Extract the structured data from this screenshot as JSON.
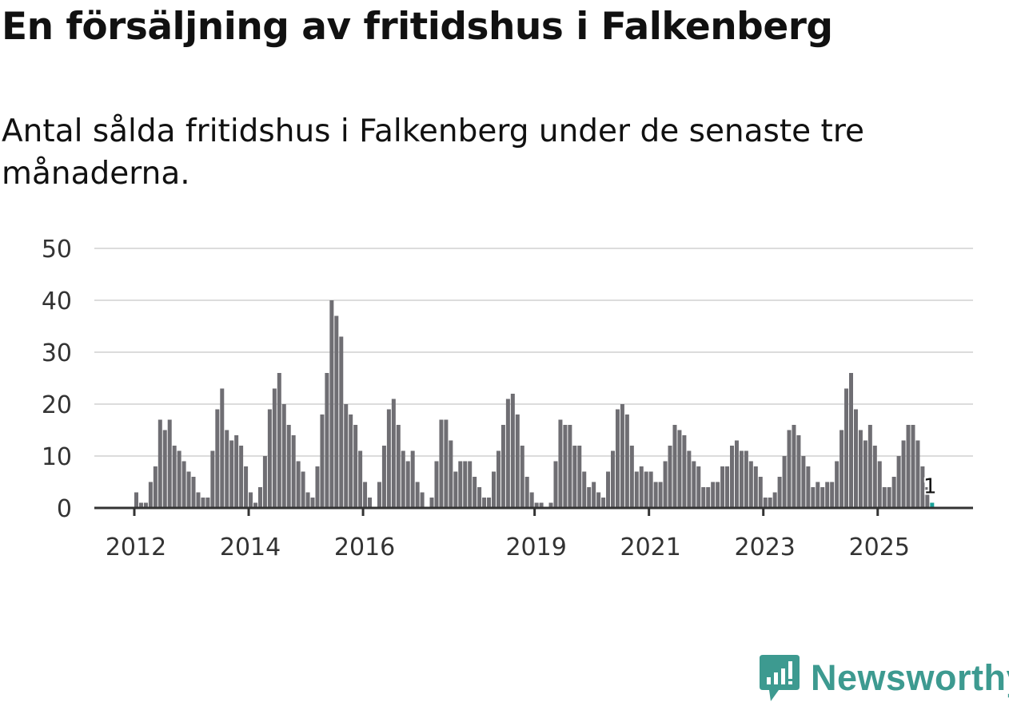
{
  "title": "En försäljning av fritidshus i Falkenberg",
  "subtitle": "Antal sålda fritidshus i Falkenberg under de senaste tre månaderna.",
  "brand": {
    "name": "Newsworthy",
    "color": "#3d9a90"
  },
  "chart_data": {
    "type": "bar",
    "title": "En försäljning av fritidshus i Falkenberg",
    "xlabel": "",
    "ylabel": "",
    "ylim": [
      0,
      50
    ],
    "yticks": [
      0,
      10,
      20,
      30,
      40,
      50
    ],
    "xticks": [
      "2012",
      "2014",
      "2016",
      "2019",
      "2021",
      "2023",
      "2025"
    ],
    "grid": true,
    "bar_color": "#6f6e73",
    "highlight_color": "#1aa39a",
    "start_month": "2012-01",
    "annotation": {
      "label": "1",
      "month": "2025-12"
    },
    "values": [
      3,
      1,
      1,
      5,
      8,
      17,
      15,
      17,
      12,
      11,
      9,
      7,
      6,
      3,
      2,
      2,
      11,
      19,
      23,
      15,
      13,
      14,
      12,
      8,
      3,
      1,
      4,
      10,
      19,
      23,
      26,
      20,
      16,
      14,
      9,
      7,
      3,
      2,
      8,
      18,
      26,
      40,
      37,
      33,
      20,
      18,
      16,
      11,
      5,
      2,
      0,
      5,
      12,
      19,
      21,
      16,
      11,
      9,
      11,
      5,
      3,
      0,
      2,
      9,
      17,
      17,
      13,
      7,
      9,
      9,
      9,
      6,
      4,
      2,
      2,
      7,
      11,
      16,
      21,
      22,
      18,
      12,
      6,
      3,
      1,
      1,
      0,
      1,
      9,
      17,
      16,
      16,
      12,
      12,
      7,
      4,
      5,
      3,
      2,
      7,
      11,
      19,
      20,
      18,
      12,
      7,
      8,
      7,
      7,
      5,
      5,
      9,
      12,
      16,
      15,
      14,
      11,
      9,
      8,
      4,
      4,
      5,
      5,
      8,
      8,
      12,
      13,
      11,
      11,
      9,
      8,
      6,
      2,
      2,
      3,
      6,
      10,
      15,
      16,
      14,
      10,
      8,
      4,
      5,
      4,
      5,
      5,
      9,
      15,
      23,
      26,
      19,
      15,
      13,
      16,
      12,
      9,
      4,
      4,
      6,
      10,
      13,
      16,
      16,
      13,
      8,
      4,
      1
    ]
  }
}
